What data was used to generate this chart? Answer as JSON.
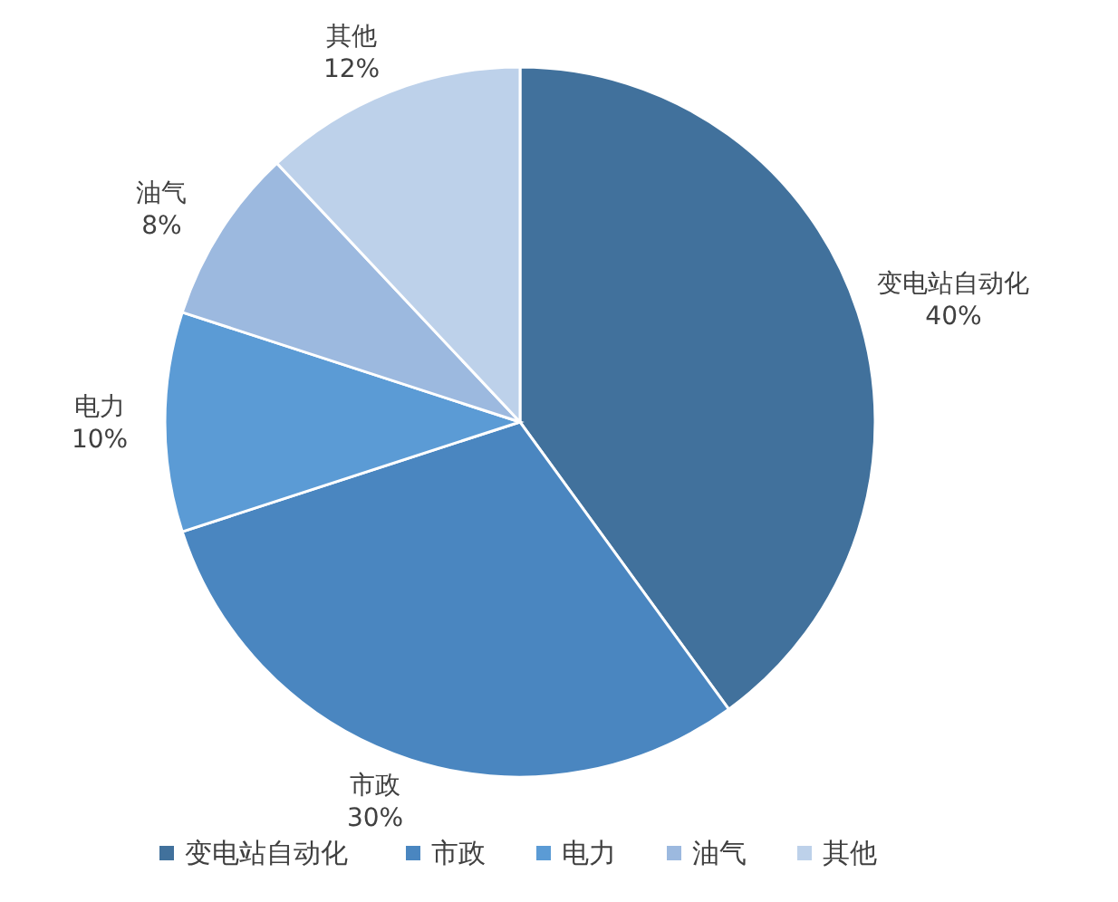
{
  "chart_data": {
    "type": "pie",
    "categories": [
      "变电站自动化",
      "市政",
      "电力",
      "油气",
      "其他"
    ],
    "values": [
      40,
      30,
      10,
      8,
      12
    ],
    "colors": [
      "#41719c",
      "#4a86c0",
      "#5b9bd5",
      "#9cb9df",
      "#bdd1ea"
    ],
    "value_labels": [
      "40%",
      "30%",
      "10%",
      "8%",
      "12%"
    ],
    "legend": "bottom"
  }
}
